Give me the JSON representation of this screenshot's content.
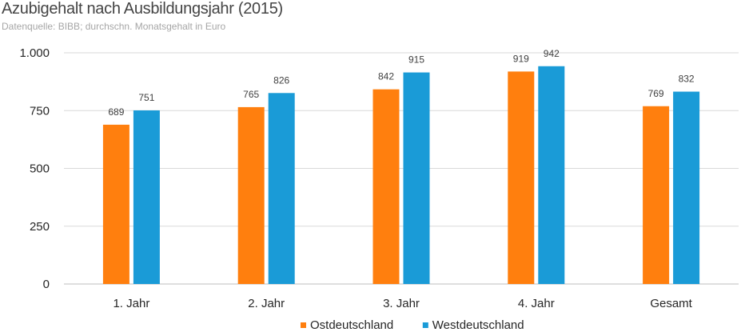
{
  "chart_data": {
    "type": "bar",
    "title": "Azubigehalt nach Ausbildungsjahr (2015)",
    "subtitle": "Datenquelle: BIBB; durchschn. Monatsgehalt in Euro",
    "xlabel": "",
    "ylabel": "",
    "ylim": [
      0,
      1000
    ],
    "yticks": [
      0,
      250,
      500,
      750,
      1000
    ],
    "ytick_labels": [
      "0",
      "250",
      "500",
      "750",
      "1.000"
    ],
    "categories": [
      "1. Jahr",
      "2. Jahr",
      "3. Jahr",
      "4. Jahr",
      "Gesamt"
    ],
    "grid": true,
    "legend_position": "bottom",
    "series": [
      {
        "name": "Ostdeutschland",
        "color": "#ff7f0e",
        "values": [
          689,
          765,
          842,
          919,
          769
        ]
      },
      {
        "name": "Westdeutschland",
        "color": "#1a9bd7",
        "values": [
          751,
          826,
          915,
          942,
          832
        ]
      }
    ]
  }
}
